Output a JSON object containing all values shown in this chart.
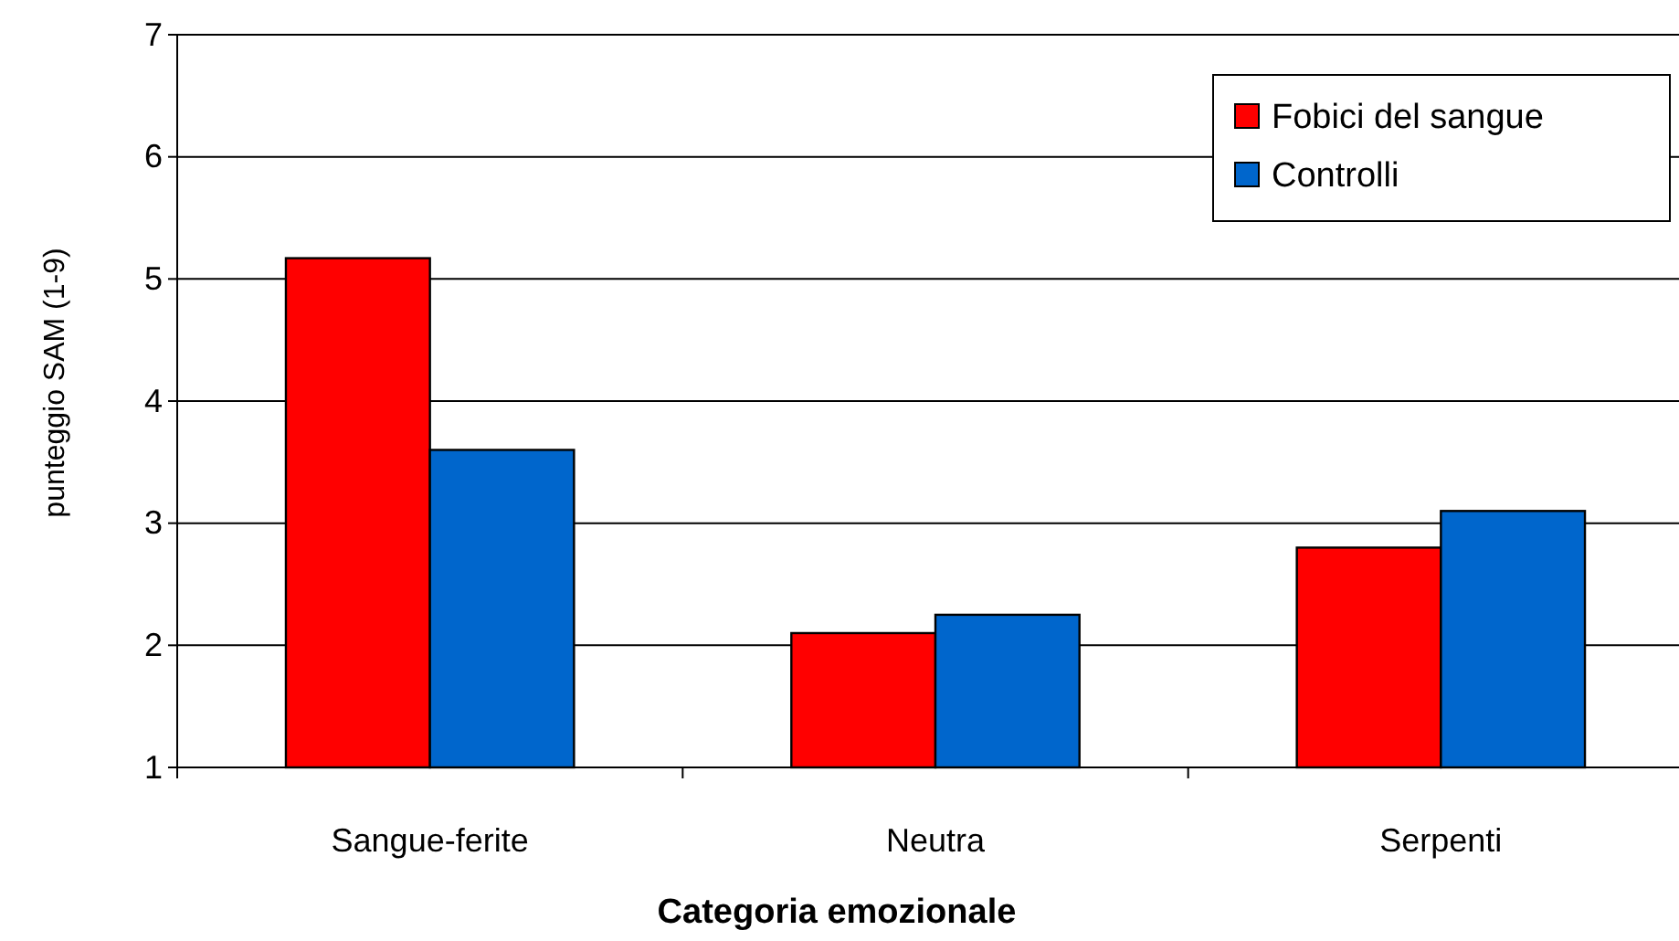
{
  "chart_data": {
    "type": "bar",
    "xlabel": "Categoria emozionale",
    "ylabel": "punteggio SAM (1-9)",
    "categories": [
      "Sangue-ferite",
      "Neutra",
      "Serpenti"
    ],
    "series": [
      {
        "name": "Fobici del sangue",
        "color": "#ff0000",
        "values": [
          5.17,
          2.1,
          2.8
        ]
      },
      {
        "name": "Controlli",
        "color": "#0066cc",
        "values": [
          3.6,
          2.25,
          3.1
        ]
      }
    ],
    "ylim": [
      1,
      7
    ],
    "yticks": [
      1,
      2,
      3,
      4,
      5,
      6,
      7
    ],
    "grid": "y",
    "legend": "top right"
  }
}
